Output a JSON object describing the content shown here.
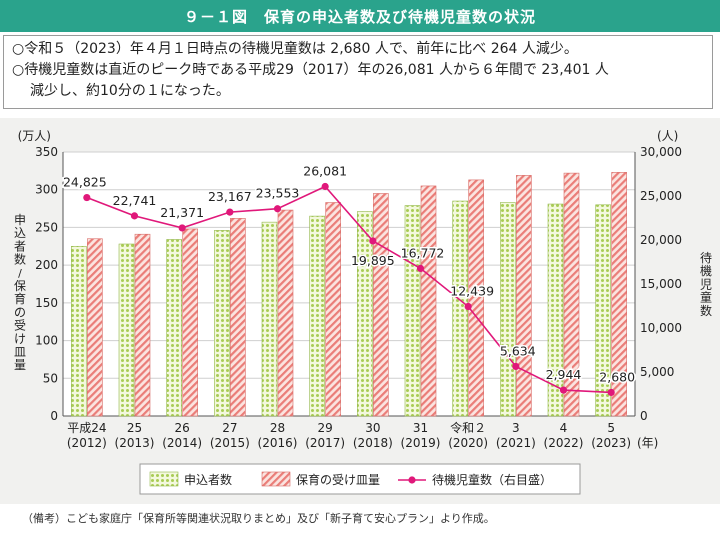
{
  "header": {
    "title": "９－１図　保育の申込者数及び待機児童数の状況"
  },
  "summary": {
    "line1": "○令和５（2023）年４月１日時点の待機児童数は 2,680 人で、前年に比べ 264 人減少。",
    "line2": "○待機児童数は直近のピーク時である平成29（2017）年の26,081 人から６年間で 23,401 人",
    "line3": "減少し、約10分の１になった。"
  },
  "chart_data": {
    "type": "bar+line",
    "categories": [
      {
        "era": "平成24",
        "year": "(2012)"
      },
      {
        "era": "25",
        "year": "(2013)"
      },
      {
        "era": "26",
        "year": "(2014)"
      },
      {
        "era": "27",
        "year": "(2015)"
      },
      {
        "era": "28",
        "year": "(2016)"
      },
      {
        "era": "29",
        "year": "(2017)"
      },
      {
        "era": "30",
        "year": "(2018)"
      },
      {
        "era": "31",
        "year": "(2019)"
      },
      {
        "era": "令和２",
        "year": "(2020)"
      },
      {
        "era": "3",
        "year": "(2021)"
      },
      {
        "era": "4",
        "year": "(2022)"
      },
      {
        "era": "5",
        "year": "(2023)"
      }
    ],
    "x_suffix": "(年)",
    "series": [
      {
        "name": "申込者数",
        "axis": "left",
        "kind": "bar",
        "color": "#b5d56a",
        "values": [
          225,
          228,
          234,
          246,
          257,
          265,
          271,
          279,
          285,
          283,
          281,
          280
        ]
      },
      {
        "name": "保育の受け皿量",
        "axis": "left",
        "kind": "bar",
        "color": "#e86a6a",
        "values": [
          235,
          241,
          248,
          262,
          273,
          283,
          295,
          305,
          313,
          319,
          322,
          323
        ]
      },
      {
        "name": "待機児童数（右目盛）",
        "axis": "right",
        "kind": "line",
        "color": "#e0187a",
        "values": [
          24825,
          22741,
          21371,
          23167,
          23553,
          26081,
          19895,
          16772,
          12439,
          5634,
          2944,
          2680
        ],
        "labels": [
          "24,825",
          "22,741",
          "21,371",
          "23,167",
          "23,553",
          "26,081",
          "19,895",
          "16,772",
          "12,439",
          "5,634",
          "2,944",
          "2,680"
        ]
      }
    ],
    "left_axis": {
      "unit": "(万人)",
      "label": "申込者数／保育の受け皿量",
      "ylim": [
        0,
        350
      ],
      "ticks": [
        "0",
        "50",
        "100",
        "150",
        "200",
        "250",
        "300",
        "350"
      ]
    },
    "right_axis": {
      "unit": "(人)",
      "label": "待機児童数",
      "ylim": [
        0,
        30000
      ],
      "ticks": [
        "0",
        "5,000",
        "10,000",
        "15,000",
        "20,000",
        "25,000",
        "30,000"
      ]
    },
    "legend_position": "bottom"
  },
  "source": "（備考）こども家庭庁「保育所等関連状況取りまとめ」及び「新子育て安心プラン」より作成。"
}
